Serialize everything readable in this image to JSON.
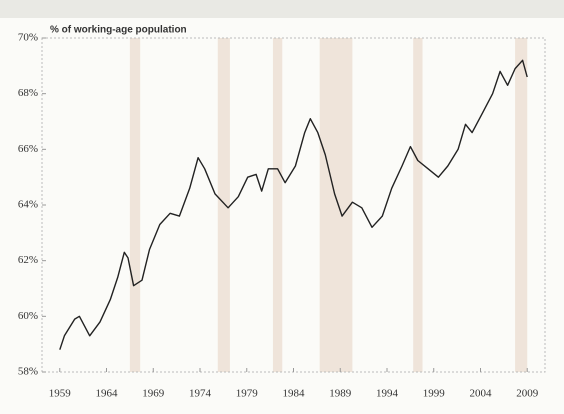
{
  "chart_data": {
    "type": "line",
    "y_axis_label": "% of working-age population",
    "xlim": [
      1957.1,
      2010.9
    ],
    "xticks": [
      1959,
      1964,
      1969,
      1974,
      1979,
      1984,
      1989,
      1994,
      1999,
      2004,
      2009
    ],
    "ylim": [
      58,
      70
    ],
    "yticks": [
      {
        "value": 58,
        "label": "58%"
      },
      {
        "value": 60,
        "label": "60%"
      },
      {
        "value": 62,
        "label": "62%"
      },
      {
        "value": 64,
        "label": "64%"
      },
      {
        "value": 66,
        "label": "66%"
      },
      {
        "value": 68,
        "label": "68%"
      },
      {
        "value": 70,
        "label": "70%"
      }
    ],
    "shaded_periods": [
      [
        1966.5,
        1967.6
      ],
      [
        1975.9,
        1977.2
      ],
      [
        1981.8,
        1982.8
      ],
      [
        1986.8,
        1990.3
      ],
      [
        1996.8,
        1997.8
      ],
      [
        2007.7,
        2009.0
      ]
    ],
    "shade_color": "#efe4da",
    "x": [
      1959.0,
      1959.5,
      1960.6,
      1961.1,
      1962.2,
      1963.3,
      1964.4,
      1965.2,
      1965.9,
      1966.3,
      1966.9,
      1967.8,
      1968.6,
      1969.7,
      1970.8,
      1971.8,
      1972.9,
      1973.8,
      1974.5,
      1975.6,
      1977.0,
      1978.1,
      1979.1,
      1980.0,
      1980.6,
      1981.3,
      1982.3,
      1983.1,
      1984.2,
      1985.2,
      1985.8,
      1986.6,
      1987.4,
      1988.4,
      1989.2,
      1990.3,
      1991.3,
      1992.4,
      1993.5,
      1994.5,
      1995.6,
      1996.5,
      1997.3,
      1998.4,
      1999.5,
      2000.5,
      2001.6,
      2002.4,
      2003.1,
      2004.2,
      2005.3,
      2006.1,
      2006.9,
      2007.7,
      2008.5,
      2009.0
    ],
    "series": [
      {
        "color": "#222222",
        "values": [
          58.8,
          59.3,
          59.9,
          60.0,
          59.3,
          59.8,
          60.6,
          61.4,
          62.3,
          62.1,
          61.1,
          61.3,
          62.4,
          63.3,
          63.7,
          63.6,
          64.6,
          65.7,
          65.3,
          64.4,
          63.9,
          64.3,
          65.0,
          65.1,
          64.5,
          65.3,
          65.3,
          64.8,
          65.4,
          66.6,
          67.1,
          66.6,
          65.8,
          64.4,
          63.6,
          64.1,
          63.9,
          63.2,
          63.6,
          64.6,
          65.4,
          66.1,
          65.6,
          65.3,
          65.0,
          65.4,
          66.0,
          66.9,
          66.6,
          67.3,
          68.0,
          68.8,
          68.3,
          68.9,
          69.2,
          68.6
        ]
      }
    ]
  }
}
